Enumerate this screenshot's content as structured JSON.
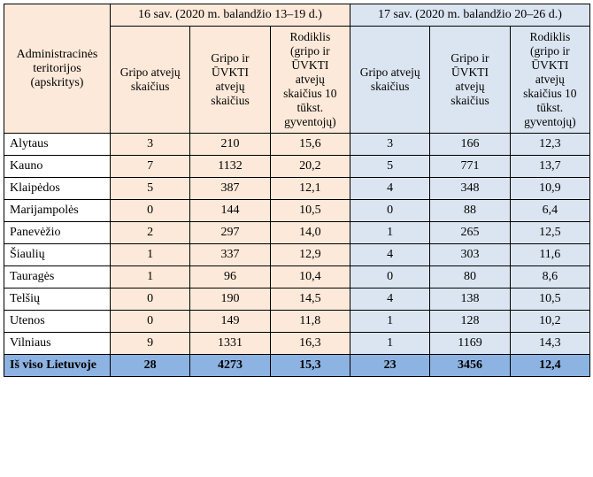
{
  "table": {
    "rowHeaderTitle": "Administracinės teritorijos (apskritys)",
    "groups": [
      {
        "title": "16 sav. (2020 m. balandžio 13–19 d.)"
      },
      {
        "title": "17 sav. (2020 m. balandžio 20–26 d.)"
      }
    ],
    "subHeaders": [
      "Gripo atvejų skaičius",
      "Gripo ir ŪVKTI atvejų skaičius",
      "Rodiklis (gripo ir ŪVKTI atvejų skaičius 10 tūkst. gyventojų)"
    ],
    "rows": [
      {
        "label": "Alytaus",
        "w16": [
          "3",
          "210",
          "15,6"
        ],
        "w17": [
          "3",
          "166",
          "12,3"
        ]
      },
      {
        "label": "Kauno",
        "w16": [
          "7",
          "1132",
          "20,2"
        ],
        "w17": [
          "5",
          "771",
          "13,7"
        ]
      },
      {
        "label": "Klaipėdos",
        "w16": [
          "5",
          "387",
          "12,1"
        ],
        "w17": [
          "4",
          "348",
          "10,9"
        ]
      },
      {
        "label": "Marijampolės",
        "w16": [
          "0",
          "144",
          "10,5"
        ],
        "w17": [
          "0",
          "88",
          "6,4"
        ]
      },
      {
        "label": "Panevėžio",
        "w16": [
          "2",
          "297",
          "14,0"
        ],
        "w17": [
          "1",
          "265",
          "12,5"
        ]
      },
      {
        "label": "Šiaulių",
        "w16": [
          "1",
          "337",
          "12,9"
        ],
        "w17": [
          "4",
          "303",
          "11,6"
        ]
      },
      {
        "label": "Tauragės",
        "w16": [
          "1",
          "96",
          "10,4"
        ],
        "w17": [
          "0",
          "80",
          "8,6"
        ]
      },
      {
        "label": "Telšių",
        "w16": [
          "0",
          "190",
          "14,5"
        ],
        "w17": [
          "4",
          "138",
          "10,5"
        ]
      },
      {
        "label": "Utenos",
        "w16": [
          "0",
          "149",
          "11,8"
        ],
        "w17": [
          "1",
          "128",
          "10,2"
        ]
      },
      {
        "label": "Vilniaus",
        "w16": [
          "9",
          "1331",
          "16,3"
        ],
        "w17": [
          "1",
          "1169",
          "14,3"
        ]
      }
    ],
    "totalRow": {
      "label": "Iš viso Lietuvoje",
      "w16": [
        "28",
        "4273",
        "15,3"
      ],
      "w17": [
        "23",
        "3456",
        "12,4"
      ]
    },
    "colors": {
      "group1_bg": "#fde9d9",
      "group2_bg": "#dbe5f1",
      "total_bg": "#8db3e2",
      "border": "#000000",
      "text": "#000000",
      "body_bg": "#ffffff"
    },
    "fonts": {
      "family": "Times New Roman",
      "base_size_pt": 11,
      "sub_header_size_pt": 10.5
    }
  }
}
